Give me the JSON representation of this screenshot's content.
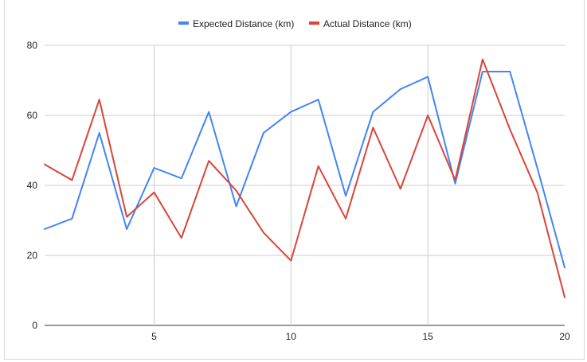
{
  "chart_data": {
    "type": "line",
    "title": "",
    "xlabel": "",
    "ylabel": "",
    "x": [
      1,
      2,
      3,
      4,
      5,
      6,
      7,
      8,
      9,
      10,
      11,
      12,
      13,
      14,
      15,
      16,
      17,
      18,
      19,
      20
    ],
    "xlim": [
      1,
      20
    ],
    "ylim": [
      0,
      80
    ],
    "x_ticks": [
      5,
      10,
      15,
      20
    ],
    "y_ticks": [
      0,
      20,
      40,
      60,
      80
    ],
    "grid": true,
    "legend_position": "top",
    "series": [
      {
        "name": "Expected Distance (km)",
        "color": "#4285f4",
        "values": [
          27.5,
          30.5,
          55,
          27.5,
          45,
          42,
          61,
          34,
          55,
          61,
          64.5,
          37,
          61,
          67.5,
          71,
          40.5,
          72.5,
          72.5,
          45,
          16.5
        ]
      },
      {
        "name": "Actual Distance (km)",
        "color": "#db4437",
        "values": [
          46,
          41.5,
          64.5,
          31,
          38,
          25,
          47,
          38.5,
          26.5,
          18.5,
          45.5,
          30.5,
          56.5,
          39,
          60,
          41.5,
          76,
          56,
          38,
          8
        ]
      }
    ]
  }
}
